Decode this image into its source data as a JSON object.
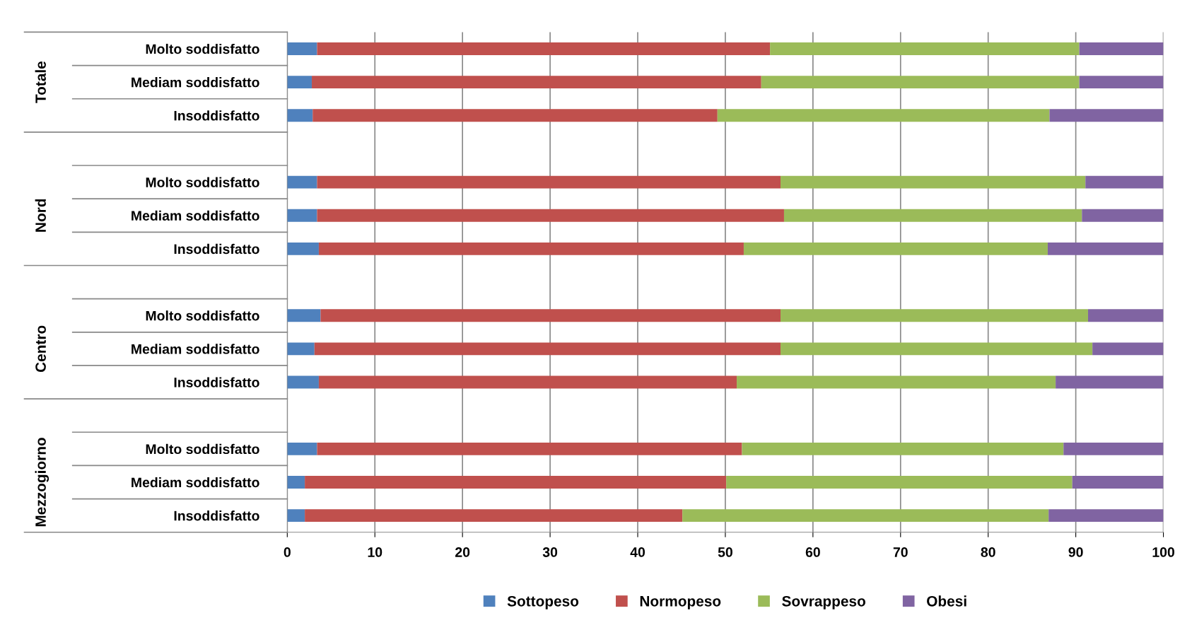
{
  "chart_data": {
    "type": "bar",
    "orientation": "horizontal",
    "stacked": true,
    "categories": [
      "Molto soddisfatto",
      "Mediam soddisfatto",
      "Insoddisfatto",
      null,
      "Molto soddisfatto",
      "Mediam soddisfatto",
      "Insoddisfatto",
      null,
      "Molto soddisfatto",
      "Mediam soddisfatto",
      "Insoddisfatto",
      null,
      "Molto soddisfatto",
      "Mediam soddisfatto",
      "Insoddisfatto"
    ],
    "series": [
      {
        "name": "Sottopeso",
        "color": "#4f81bd",
        "values": [
          3.4,
          2.8,
          2.9,
          null,
          3.4,
          3.4,
          3.6,
          null,
          3.8,
          3.1,
          3.6,
          null,
          3.4,
          2.0,
          2.0
        ]
      },
      {
        "name": "Normopeso",
        "color": "#c0504d",
        "values": [
          51.7,
          51.3,
          46.2,
          null,
          52.9,
          53.3,
          48.5,
          null,
          52.5,
          53.2,
          47.7,
          null,
          48.5,
          48.1,
          43.1
        ]
      },
      {
        "name": "Sovrappeso",
        "color": "#9bbb59",
        "values": [
          35.3,
          36.3,
          37.9,
          null,
          34.8,
          34.0,
          34.7,
          null,
          35.1,
          35.6,
          36.4,
          null,
          36.7,
          39.5,
          41.8
        ]
      },
      {
        "name": "Obesi",
        "color": "#8064a2",
        "values": [
          9.6,
          9.6,
          13.0,
          null,
          8.9,
          9.3,
          13.2,
          null,
          8.6,
          8.1,
          12.3,
          null,
          11.4,
          10.4,
          13.1
        ]
      }
    ],
    "xlim": [
      0,
      100
    ],
    "xticks": [
      0,
      10,
      20,
      30,
      40,
      50,
      60,
      70,
      80,
      90,
      100
    ],
    "grid": "x",
    "legend": "bottom",
    "annotations": [
      "Totale",
      "Nord",
      "Centro",
      "Mezzogiorno"
    ]
  }
}
